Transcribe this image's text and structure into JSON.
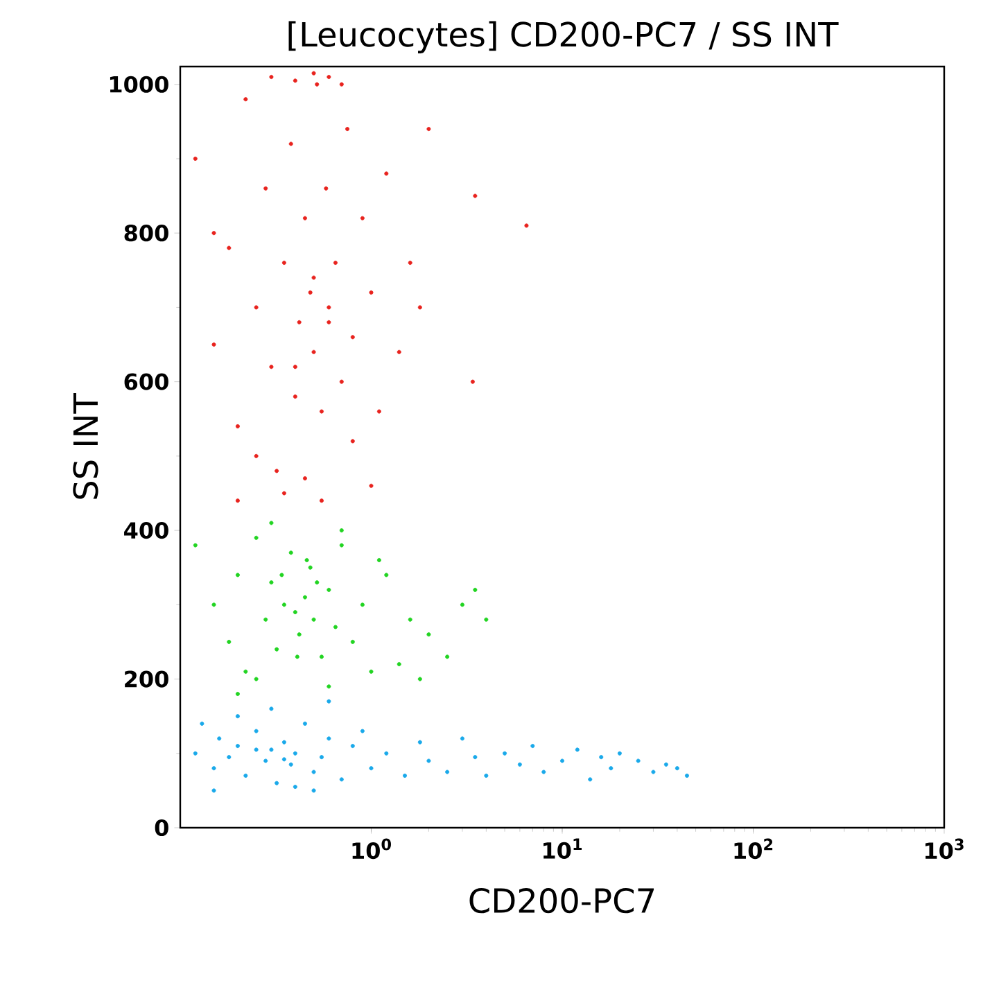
{
  "chart_data": {
    "type": "scatter",
    "title": "[Leucocytes] CD200-PC7 / SS INT",
    "xlabel": "CD200-PC7",
    "ylabel": "SS INT",
    "log": "x",
    "xlim": [
      0.1,
      1000
    ],
    "ylim": [
      0,
      1024
    ],
    "xticks": [
      {
        "value": 1,
        "label": "10$^{0}$"
      },
      {
        "value": 10,
        "label": "10$^{1}$"
      },
      {
        "value": 100,
        "label": "10$^{2}$"
      },
      {
        "value": 1000,
        "label": "10$^{3}$"
      }
    ],
    "yticks": [
      0,
      200,
      400,
      600,
      800,
      1000
    ],
    "series": [
      {
        "color": "#e8231e",
        "x": [
          0.12,
          0.15,
          0.18,
          0.2,
          0.22,
          0.25,
          0.28,
          0.3,
          0.32,
          0.35,
          0.38,
          0.4,
          0.42,
          0.45,
          0.48,
          0.5,
          0.52,
          0.55,
          0.58,
          0.6,
          0.65,
          0.7,
          0.75,
          0.8,
          0.9,
          1.0,
          1.1,
          1.2,
          1.4,
          1.6,
          1.8,
          2.0,
          0.3,
          0.4,
          0.5,
          0.6,
          0.7,
          0.35,
          0.45,
          0.55,
          0.25,
          0.2,
          0.8,
          1.0,
          0.15,
          0.5,
          0.6,
          0.4,
          3.5,
          6.5,
          3.4
        ],
        "values": [
          900,
          650,
          780,
          540,
          980,
          700,
          860,
          620,
          480,
          760,
          920,
          580,
          680,
          820,
          720,
          640,
          1000,
          560,
          860,
          700,
          760,
          600,
          940,
          660,
          820,
          720,
          560,
          880,
          640,
          760,
          700,
          940,
          1010,
          1005,
          1015,
          1010,
          1000,
          450,
          470,
          440,
          500,
          440,
          520,
          460,
          800,
          740,
          680,
          620,
          850,
          810,
          600
        ]
      },
      {
        "color": "#22d422",
        "x": [
          0.12,
          0.15,
          0.18,
          0.2,
          0.22,
          0.25,
          0.28,
          0.3,
          0.32,
          0.35,
          0.38,
          0.4,
          0.42,
          0.45,
          0.48,
          0.5,
          0.55,
          0.6,
          0.65,
          0.7,
          0.8,
          0.9,
          1.0,
          1.2,
          1.4,
          1.6,
          1.8,
          2.0,
          2.5,
          3.0,
          3.5,
          4.0,
          0.34,
          0.41,
          0.46,
          0.52,
          0.25,
          0.3,
          0.6,
          0.7,
          0.2,
          1.1
        ],
        "values": [
          380,
          300,
          250,
          340,
          210,
          390,
          280,
          330,
          240,
          300,
          370,
          290,
          260,
          310,
          350,
          280,
          230,
          320,
          270,
          380,
          250,
          300,
          210,
          340,
          220,
          280,
          200,
          260,
          230,
          300,
          320,
          280,
          340,
          230,
          360,
          330,
          200,
          410,
          190,
          400,
          180,
          360
        ]
      },
      {
        "color": "#1aa9ea",
        "x": [
          0.12,
          0.13,
          0.15,
          0.16,
          0.18,
          0.2,
          0.22,
          0.25,
          0.28,
          0.3,
          0.32,
          0.35,
          0.38,
          0.4,
          0.45,
          0.5,
          0.55,
          0.6,
          0.7,
          0.8,
          0.9,
          1.0,
          1.2,
          1.5,
          1.8,
          2.0,
          2.5,
          3.0,
          3.5,
          4.0,
          5.0,
          6.0,
          7.0,
          8.0,
          10,
          12,
          14,
          16,
          18,
          20,
          25,
          30,
          35,
          40,
          45,
          0.2,
          0.3,
          0.4,
          0.5,
          0.25,
          0.35,
          0.15,
          0.6
        ],
        "values": [
          100,
          140,
          80,
          120,
          95,
          110,
          70,
          130,
          90,
          105,
          60,
          115,
          85,
          100,
          140,
          75,
          95,
          120,
          65,
          110,
          130,
          80,
          100,
          70,
          115,
          90,
          75,
          120,
          95,
          70,
          100,
          85,
          110,
          75,
          90,
          105,
          65,
          95,
          80,
          100,
          90,
          75,
          85,
          80,
          70,
          150,
          160,
          55,
          50,
          105,
          92,
          50,
          170
        ]
      }
    ]
  }
}
